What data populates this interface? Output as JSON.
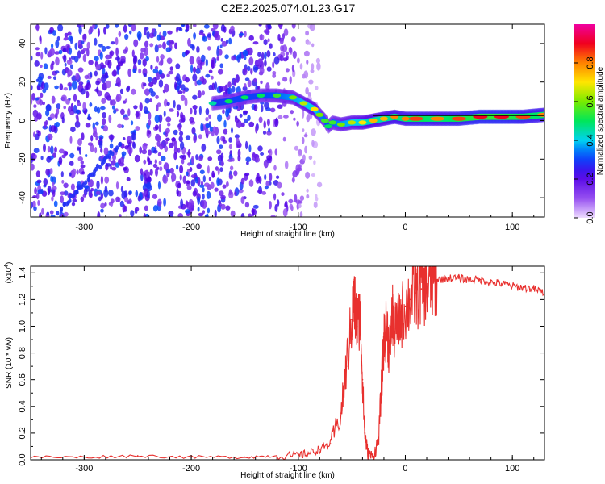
{
  "title": "C2E2.2025.074.01.23.G17",
  "chart_data": [
    {
      "type": "heatmap",
      "xlabel": "Height of straight line (km)",
      "ylabel": "Frequency (Hz)",
      "xlim": [
        -350,
        130
      ],
      "ylim": [
        -50,
        50
      ],
      "xticks": [
        -300,
        -200,
        -100,
        0,
        100
      ],
      "yticks": [
        -40,
        -20,
        0,
        20,
        40
      ],
      "colorbar": {
        "label": "Normalized spectral amplitude",
        "range": [
          0,
          1
        ],
        "ticks": [
          "0.0",
          "0.2",
          "0.4",
          "0.6",
          "0.8"
        ],
        "tick_values": [
          0,
          0.2,
          0.4,
          0.6,
          0.8
        ],
        "colormap": "rainbow (purple-blue-cyan-green-yellow-red-magenta)"
      },
      "noise_region": {
        "x": [
          -350,
          -90
        ],
        "frequency_range": [
          -50,
          50
        ]
      },
      "ridge": {
        "x": [
          -180,
          -165,
          -150,
          -135,
          -120,
          -105,
          -95,
          -85,
          -80,
          -75,
          -72,
          -68,
          -60,
          -50,
          -40,
          -30,
          -20,
          -10,
          0,
          10,
          30,
          50,
          70,
          90,
          110,
          130
        ],
        "frequency": [
          9,
          10,
          12,
          13,
          13,
          12,
          9,
          6,
          3,
          0,
          -3,
          -1,
          -2,
          -1,
          -1,
          0,
          1,
          2,
          1,
          1,
          1,
          1,
          2,
          2,
          2,
          3
        ],
        "amplitude": [
          0.45,
          0.5,
          0.5,
          0.5,
          0.55,
          0.6,
          0.65,
          0.7,
          0.6,
          0.55,
          0.5,
          0.55,
          0.6,
          0.65,
          0.7,
          0.75,
          0.75,
          0.8,
          0.8,
          0.85,
          0.8,
          0.85,
          0.9,
          0.9,
          0.85,
          0.8
        ]
      }
    },
    {
      "type": "line",
      "xlabel": "Height of straight line (km)",
      "ylabel": "SNR (10 * v/v)",
      "scale_label": "(x10",
      "scale_exponent": "4",
      "xlim": [
        -350,
        130
      ],
      "ylim": [
        0,
        1.45
      ],
      "xticks": [
        -300,
        -200,
        -100,
        0,
        100
      ],
      "yticks": [
        "0.0",
        "0.2",
        "0.4",
        "0.6",
        "0.8",
        "1.0",
        "1.2",
        "1.4"
      ],
      "ytick_values": [
        0,
        0.2,
        0.4,
        0.6,
        0.8,
        1.0,
        1.2,
        1.4
      ],
      "color": "#e8302e",
      "series": [
        {
          "x": [
            -350,
            -300,
            -250,
            -200,
            -150,
            -120,
            -100,
            -90,
            -80,
            -70,
            -60,
            -55,
            -50,
            -48,
            -45,
            -42,
            -40,
            -38,
            -35,
            -30,
            -25,
            -22,
            -20,
            -17,
            -15,
            -12,
            -10,
            -5,
            0,
            5,
            10,
            15,
            20,
            25,
            30,
            40,
            50,
            60,
            70,
            80,
            90,
            100,
            110,
            120,
            130
          ],
          "y": [
            0.02,
            0.02,
            0.03,
            0.02,
            0.02,
            0.03,
            0.03,
            0.05,
            0.08,
            0.12,
            0.35,
            0.7,
            1.05,
            1.2,
            1.0,
            1.1,
            0.6,
            0.2,
            0.05,
            0.02,
            0.15,
            0.6,
            0.9,
            1.0,
            0.8,
            1.1,
            0.95,
            1.05,
            1.15,
            1.2,
            1.25,
            1.28,
            1.3,
            1.32,
            1.35,
            1.36,
            1.36,
            1.35,
            1.35,
            1.33,
            1.32,
            1.3,
            1.29,
            1.28,
            1.25
          ]
        }
      ]
    }
  ]
}
